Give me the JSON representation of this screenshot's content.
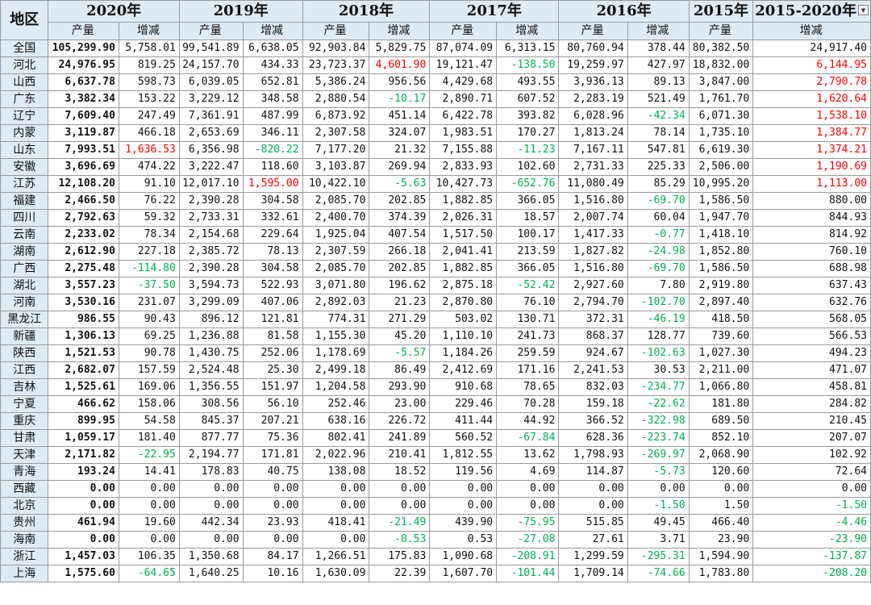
{
  "header": {
    "region_label": "地区",
    "years": [
      "2020年",
      "2019年",
      "2018年",
      "2017年",
      "2016年",
      "2015年",
      "2015-2020年"
    ],
    "output_label": "产量",
    "change_label": "增减"
  },
  "colors": {
    "header_fill": "#ddebf7",
    "negative": "#00b050",
    "highlight": "#ff0000",
    "grid": "#9a9a9a"
  },
  "rows": [
    {
      "region": "全国",
      "cells": [
        "105,299.90",
        "5,758.01",
        "99,541.89",
        "6,638.05",
        "92,903.84",
        "5,829.75",
        "87,074.09",
        "6,313.15",
        "80,760.94",
        "378.44",
        "80,382.50",
        "24,917.40"
      ]
    },
    {
      "region": "河北",
      "cells": [
        "24,976.95",
        "819.25",
        "24,157.70",
        "434.33",
        "23,723.37",
        "4,601.90",
        "19,121.47",
        "-138.50",
        "19,259.97",
        "427.97",
        "18,832.00",
        "6,144.95"
      ]
    },
    {
      "region": "山西",
      "cells": [
        "6,637.78",
        "598.73",
        "6,039.05",
        "652.81",
        "5,386.24",
        "956.56",
        "4,429.68",
        "493.55",
        "3,936.13",
        "89.13",
        "3,847.00",
        "2,790.78"
      ]
    },
    {
      "region": "广东",
      "cells": [
        "3,382.34",
        "153.22",
        "3,229.12",
        "348.58",
        "2,880.54",
        "-10.17",
        "2,890.71",
        "607.52",
        "2,283.19",
        "521.49",
        "1,761.70",
        "1,620.64"
      ]
    },
    {
      "region": "辽宁",
      "cells": [
        "7,609.40",
        "247.49",
        "7,361.91",
        "487.99",
        "6,873.92",
        "451.14",
        "6,422.78",
        "393.82",
        "6,028.96",
        "-42.34",
        "6,071.30",
        "1,538.10"
      ]
    },
    {
      "region": "内蒙",
      "cells": [
        "3,119.87",
        "466.18",
        "2,653.69",
        "346.11",
        "2,307.58",
        "324.07",
        "1,983.51",
        "170.27",
        "1,813.24",
        "78.14",
        "1,735.10",
        "1,384.77"
      ]
    },
    {
      "region": "山东",
      "cells": [
        "7,993.51",
        "1,636.53",
        "6,356.98",
        "-820.22",
        "7,177.20",
        "21.32",
        "7,155.88",
        "-11.23",
        "7,167.11",
        "547.81",
        "6,619.30",
        "1,374.21"
      ]
    },
    {
      "region": "安徽",
      "cells": [
        "3,696.69",
        "474.22",
        "3,222.47",
        "118.60",
        "3,103.87",
        "269.94",
        "2,833.93",
        "102.60",
        "2,731.33",
        "225.33",
        "2,506.00",
        "1,190.69"
      ]
    },
    {
      "region": "江苏",
      "cells": [
        "12,108.20",
        "91.10",
        "12,017.10",
        "1,595.00",
        "10,422.10",
        "-5.63",
        "10,427.73",
        "-652.76",
        "11,080.49",
        "85.29",
        "10,995.20",
        "1,113.00"
      ]
    },
    {
      "region": "福建",
      "cells": [
        "2,466.50",
        "76.22",
        "2,390.28",
        "304.58",
        "2,085.70",
        "202.85",
        "1,882.85",
        "366.05",
        "1,516.80",
        "-69.70",
        "1,586.50",
        "880.00"
      ]
    },
    {
      "region": "四川",
      "cells": [
        "2,792.63",
        "59.32",
        "2,733.31",
        "332.61",
        "2,400.70",
        "374.39",
        "2,026.31",
        "18.57",
        "2,007.74",
        "60.04",
        "1,947.70",
        "844.93"
      ]
    },
    {
      "region": "云南",
      "cells": [
        "2,233.02",
        "78.34",
        "2,154.68",
        "229.64",
        "1,925.04",
        "407.54",
        "1,517.50",
        "100.17",
        "1,417.33",
        "-0.77",
        "1,418.10",
        "814.92"
      ]
    },
    {
      "region": "湖南",
      "cells": [
        "2,612.90",
        "227.18",
        "2,385.72",
        "78.13",
        "2,307.59",
        "266.18",
        "2,041.41",
        "213.59",
        "1,827.82",
        "-24.98",
        "1,852.80",
        "760.10"
      ]
    },
    {
      "region": "广西",
      "cells": [
        "2,275.48",
        "-114.80",
        "2,390.28",
        "304.58",
        "2,085.70",
        "202.85",
        "1,882.85",
        "366.05",
        "1,516.80",
        "-69.70",
        "1,586.50",
        "688.98"
      ]
    },
    {
      "region": "湖北",
      "cells": [
        "3,557.23",
        "-37.50",
        "3,594.73",
        "522.93",
        "3,071.80",
        "196.62",
        "2,875.18",
        "-52.42",
        "2,927.60",
        "7.80",
        "2,919.80",
        "637.43"
      ]
    },
    {
      "region": "河南",
      "cells": [
        "3,530.16",
        "231.07",
        "3,299.09",
        "407.06",
        "2,892.03",
        "21.23",
        "2,870.80",
        "76.10",
        "2,794.70",
        "-102.70",
        "2,897.40",
        "632.76"
      ]
    },
    {
      "region": "黑龙江",
      "cells": [
        "986.55",
        "90.43",
        "896.12",
        "121.81",
        "774.31",
        "271.29",
        "503.02",
        "130.71",
        "372.31",
        "-46.19",
        "418.50",
        "568.05"
      ]
    },
    {
      "region": "新疆",
      "cells": [
        "1,306.13",
        "69.25",
        "1,236.88",
        "81.58",
        "1,155.30",
        "45.20",
        "1,110.10",
        "241.73",
        "868.37",
        "128.77",
        "739.60",
        "566.53"
      ]
    },
    {
      "region": "陕西",
      "cells": [
        "1,521.53",
        "90.78",
        "1,430.75",
        "252.06",
        "1,178.69",
        "-5.57",
        "1,184.26",
        "259.59",
        "924.67",
        "-102.63",
        "1,027.30",
        "494.23"
      ]
    },
    {
      "region": "江西",
      "cells": [
        "2,682.07",
        "157.59",
        "2,524.48",
        "25.30",
        "2,499.18",
        "86.49",
        "2,412.69",
        "171.16",
        "2,241.53",
        "30.53",
        "2,211.00",
        "471.07"
      ]
    },
    {
      "region": "吉林",
      "cells": [
        "1,525.61",
        "169.06",
        "1,356.55",
        "151.97",
        "1,204.58",
        "293.90",
        "910.68",
        "78.65",
        "832.03",
        "-234.77",
        "1,066.80",
        "458.81"
      ]
    },
    {
      "region": "宁夏",
      "cells": [
        "466.62",
        "158.06",
        "308.56",
        "56.10",
        "252.46",
        "23.00",
        "229.46",
        "70.28",
        "159.18",
        "-22.62",
        "181.80",
        "284.82"
      ]
    },
    {
      "region": "重庆",
      "cells": [
        "899.95",
        "54.58",
        "845.37",
        "207.21",
        "638.16",
        "226.72",
        "411.44",
        "44.92",
        "366.52",
        "-322.98",
        "689.50",
        "210.45"
      ]
    },
    {
      "region": "甘肃",
      "cells": [
        "1,059.17",
        "181.40",
        "877.77",
        "75.36",
        "802.41",
        "241.89",
        "560.52",
        "-67.84",
        "628.36",
        "-223.74",
        "852.10",
        "207.07"
      ]
    },
    {
      "region": "天津",
      "cells": [
        "2,171.82",
        "-22.95",
        "2,194.77",
        "171.81",
        "2,022.96",
        "210.41",
        "1,812.55",
        "13.62",
        "1,798.93",
        "-269.97",
        "2,068.90",
        "102.92"
      ]
    },
    {
      "region": "青海",
      "cells": [
        "193.24",
        "14.41",
        "178.83",
        "40.75",
        "138.08",
        "18.52",
        "119.56",
        "4.69",
        "114.87",
        "-5.73",
        "120.60",
        "72.64"
      ]
    },
    {
      "region": "西藏",
      "cells": [
        "0.00",
        "0.00",
        "0.00",
        "0.00",
        "0.00",
        "0.00",
        "0.00",
        "0.00",
        "0.00",
        "0.00",
        "0.00",
        "0.00"
      ]
    },
    {
      "region": "北京",
      "cells": [
        "0.00",
        "0.00",
        "0.00",
        "0.00",
        "0.00",
        "0.00",
        "0.00",
        "0.00",
        "0.00",
        "-1.50",
        "1.50",
        "-1.50"
      ]
    },
    {
      "region": "贵州",
      "cells": [
        "461.94",
        "19.60",
        "442.34",
        "23.93",
        "418.41",
        "-21.49",
        "439.90",
        "-75.95",
        "515.85",
        "49.45",
        "466.40",
        "-4.46"
      ]
    },
    {
      "region": "海南",
      "cells": [
        "0.00",
        "0.00",
        "0.00",
        "0.00",
        "0.00",
        "-0.53",
        "0.53",
        "-27.08",
        "27.61",
        "3.71",
        "23.90",
        "-23.90"
      ]
    },
    {
      "region": "浙江",
      "cells": [
        "1,457.03",
        "106.35",
        "1,350.68",
        "84.17",
        "1,266.51",
        "175.83",
        "1,090.68",
        "-208.91",
        "1,299.59",
        "-295.31",
        "1,594.90",
        "-137.87"
      ]
    },
    {
      "region": "上海",
      "cells": [
        "1,575.60",
        "-64.65",
        "1,640.25",
        "10.16",
        "1,630.09",
        "22.39",
        "1,607.70",
        "-101.44",
        "1,709.14",
        "-74.66",
        "1,783.80",
        "-208.20"
      ]
    }
  ]
}
